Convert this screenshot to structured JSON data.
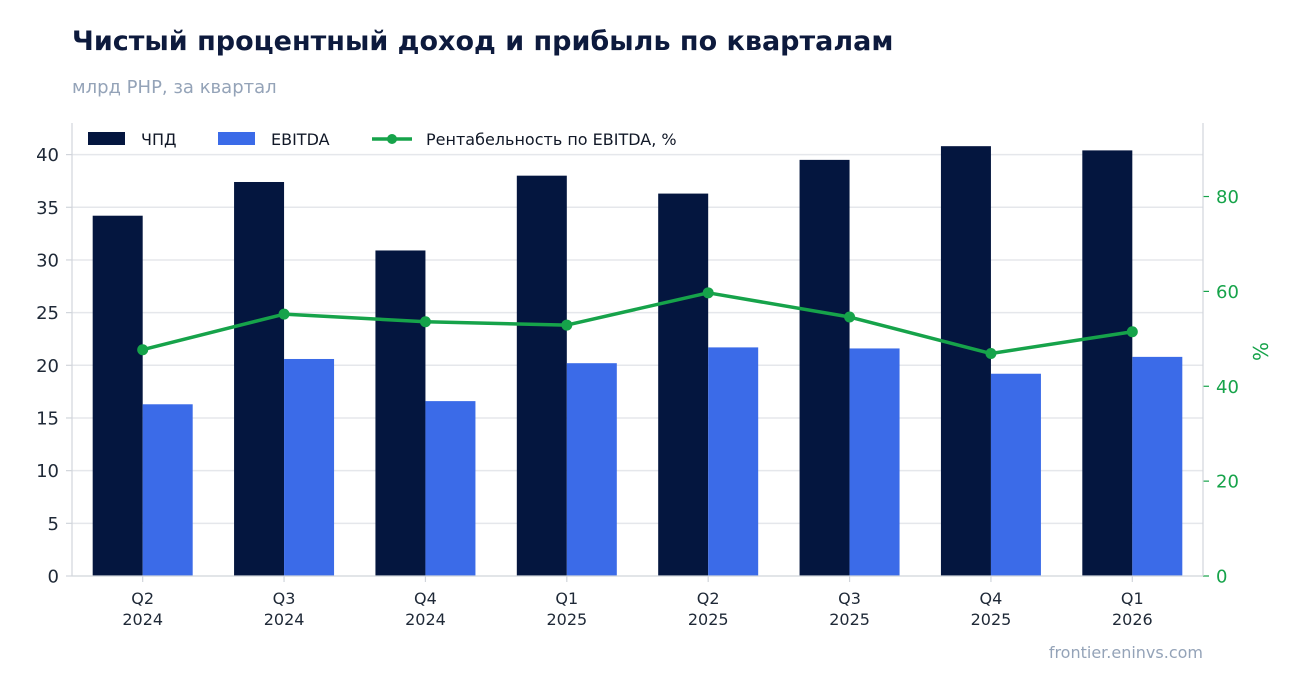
{
  "header": {
    "title": "Чистый процентный доход и прибыль по кварталам",
    "subtitle": "млрд РНР, за квартал"
  },
  "footer": {
    "source": "frontier.eninvs.com"
  },
  "colors": {
    "npd": "#04163f",
    "ebitda": "#3b6be8",
    "margin": "#16a34a",
    "grid": "#e5e7eb",
    "axis": "#d1d5db"
  },
  "chart_data": {
    "type": "bar",
    "categories": [
      "Q2\n2024",
      "Q3\n2024",
      "Q4\n2024",
      "Q1\n2025",
      "Q2\n2025",
      "Q3\n2025",
      "Q4\n2025",
      "Q1\n2026"
    ],
    "category_lines": [
      [
        "Q2",
        "2024"
      ],
      [
        "Q3",
        "2024"
      ],
      [
        "Q4",
        "2024"
      ],
      [
        "Q1",
        "2025"
      ],
      [
        "Q2",
        "2025"
      ],
      [
        "Q3",
        "2025"
      ],
      [
        "Q4",
        "2025"
      ],
      [
        "Q1",
        "2026"
      ]
    ],
    "series": [
      {
        "name": "ЧПД",
        "type": "bar",
        "axis": "left",
        "values": [
          34.2,
          37.4,
          30.9,
          38.0,
          36.3,
          39.5,
          40.8,
          40.4
        ]
      },
      {
        "name": "EBITDA",
        "type": "bar",
        "axis": "left",
        "values": [
          16.3,
          20.6,
          16.6,
          20.2,
          21.7,
          21.6,
          19.2,
          20.8
        ]
      },
      {
        "name": "Рентабельность по EBITDA, %",
        "type": "line",
        "axis": "right",
        "values": [
          47.7,
          55.2,
          53.6,
          52.9,
          59.7,
          54.6,
          46.9,
          51.5
        ]
      }
    ],
    "ylim": [
      0,
      43
    ],
    "yticks": [
      0,
      5,
      10,
      15,
      20,
      25,
      30,
      35,
      40
    ],
    "y2lim": [
      0,
      95.5
    ],
    "y2ticks": [
      0,
      20,
      40,
      60,
      80
    ],
    "y2label": "%",
    "grid": true,
    "legend": "top-left"
  }
}
